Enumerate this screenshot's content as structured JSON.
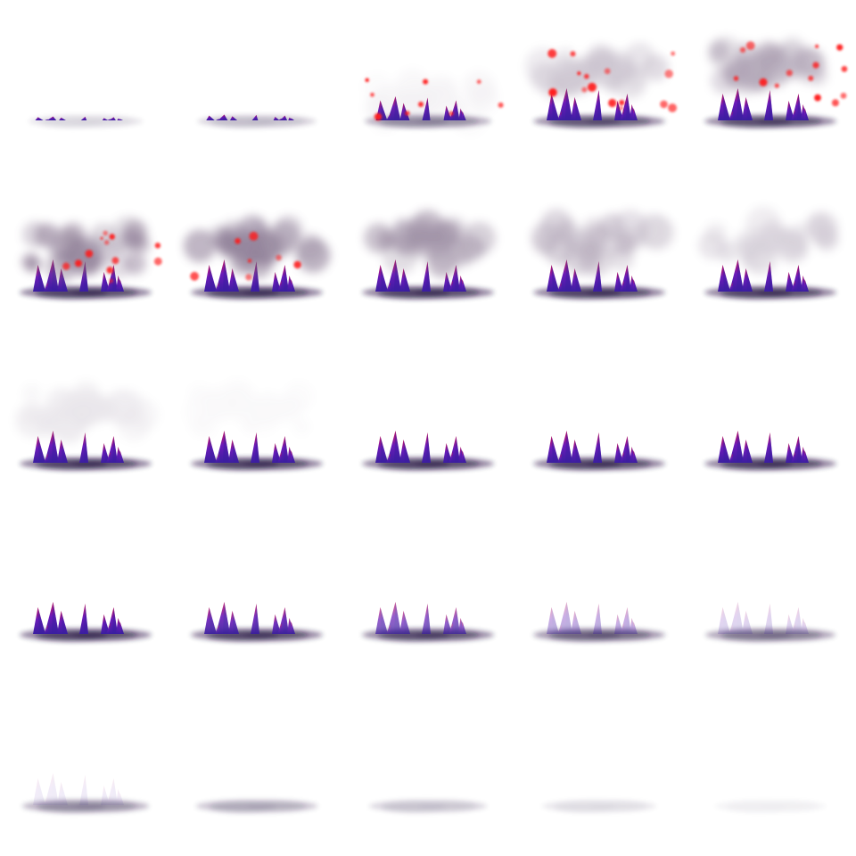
{
  "sprite_sheet": {
    "columns": 5,
    "rows": 5,
    "frame_count": 25,
    "colors": {
      "background": "#ffffff",
      "crystal_base": "#3a1ea0",
      "crystal_tip": "#d0135a",
      "crystal_mid": "#6a1ab8",
      "shadow": "#1e0a3c",
      "smoke": "#6e5878",
      "spark": "#ff1a1a"
    },
    "icons": {
      "crystal": "crystal-spike-icon",
      "shadow": "ground-shadow-icon",
      "smoke": "smoke-cloud-icon",
      "spark": "red-spark-icon"
    },
    "frames": [
      {
        "label": "frame-1",
        "spikes": 0.12,
        "spike_alpha": 1.0,
        "shadow": 0.18,
        "smoke": 0.0,
        "smoke_height": 0.0,
        "sparks": 0.0
      },
      {
        "label": "frame-2",
        "spikes": 0.18,
        "spike_alpha": 1.0,
        "shadow": 0.3,
        "smoke": 0.0,
        "smoke_height": 0.0,
        "sparks": 0.0
      },
      {
        "label": "frame-3",
        "spikes": 0.75,
        "spike_alpha": 1.0,
        "shadow": 0.55,
        "smoke": 0.08,
        "smoke_height": 0.0,
        "sparks": 0.6
      },
      {
        "label": "frame-4",
        "spikes": 1.0,
        "spike_alpha": 1.0,
        "shadow": 0.8,
        "smoke": 0.35,
        "smoke_height": 0.55,
        "sparks": 1.0
      },
      {
        "label": "frame-5",
        "spikes": 1.0,
        "spike_alpha": 1.0,
        "shadow": 0.85,
        "smoke": 0.55,
        "smoke_height": 0.65,
        "sparks": 0.9
      },
      {
        "label": "frame-6",
        "spikes": 1.0,
        "spike_alpha": 1.0,
        "shadow": 0.9,
        "smoke": 0.75,
        "smoke_height": 0.45,
        "sparks": 0.8
      },
      {
        "label": "frame-7",
        "spikes": 1.0,
        "spike_alpha": 1.0,
        "shadow": 0.9,
        "smoke": 0.75,
        "smoke_height": 0.5,
        "sparks": 0.4
      },
      {
        "label": "frame-8",
        "spikes": 1.0,
        "spike_alpha": 1.0,
        "shadow": 0.9,
        "smoke": 0.65,
        "smoke_height": 0.55,
        "sparks": 0.0
      },
      {
        "label": "frame-9",
        "spikes": 1.0,
        "spike_alpha": 1.0,
        "shadow": 0.9,
        "smoke": 0.45,
        "smoke_height": 0.6,
        "sparks": 0.0
      },
      {
        "label": "frame-10",
        "spikes": 1.0,
        "spike_alpha": 1.0,
        "shadow": 0.9,
        "smoke": 0.3,
        "smoke_height": 0.62,
        "sparks": 0.0
      },
      {
        "label": "frame-11",
        "spikes": 1.0,
        "spike_alpha": 1.0,
        "shadow": 0.9,
        "smoke": 0.15,
        "smoke_height": 0.64,
        "sparks": 0.0
      },
      {
        "label": "frame-12",
        "spikes": 1.0,
        "spike_alpha": 1.0,
        "shadow": 0.9,
        "smoke": 0.04,
        "smoke_height": 0.66,
        "sparks": 0.0
      },
      {
        "label": "frame-13",
        "spikes": 1.0,
        "spike_alpha": 1.0,
        "shadow": 0.9,
        "smoke": 0.0,
        "smoke_height": 0.0,
        "sparks": 0.0
      },
      {
        "label": "frame-14",
        "spikes": 1.0,
        "spike_alpha": 1.0,
        "shadow": 0.9,
        "smoke": 0.0,
        "smoke_height": 0.0,
        "sparks": 0.0
      },
      {
        "label": "frame-15",
        "spikes": 1.0,
        "spike_alpha": 1.0,
        "shadow": 0.9,
        "smoke": 0.0,
        "smoke_height": 0.0,
        "sparks": 0.0
      },
      {
        "label": "frame-16",
        "spikes": 1.0,
        "spike_alpha": 1.0,
        "shadow": 0.9,
        "smoke": 0.0,
        "smoke_height": 0.0,
        "sparks": 0.0
      },
      {
        "label": "frame-17",
        "spikes": 1.0,
        "spike_alpha": 0.9,
        "shadow": 0.88,
        "smoke": 0.0,
        "smoke_height": 0.0,
        "sparks": 0.0
      },
      {
        "label": "frame-18",
        "spikes": 1.0,
        "spike_alpha": 0.7,
        "shadow": 0.85,
        "smoke": 0.0,
        "smoke_height": 0.0,
        "sparks": 0.0
      },
      {
        "label": "frame-19",
        "spikes": 1.0,
        "spike_alpha": 0.35,
        "shadow": 0.75,
        "smoke": 0.0,
        "smoke_height": 0.0,
        "sparks": 0.0
      },
      {
        "label": "frame-20",
        "spikes": 1.0,
        "spike_alpha": 0.18,
        "shadow": 0.65,
        "smoke": 0.0,
        "smoke_height": 0.0,
        "sparks": 0.0
      },
      {
        "label": "frame-21",
        "spikes": 1.0,
        "spike_alpha": 0.08,
        "shadow": 0.55,
        "smoke": 0.0,
        "smoke_height": 0.0,
        "sparks": 0.0
      },
      {
        "label": "frame-22",
        "spikes": 1.0,
        "spike_alpha": 0.0,
        "shadow": 0.4,
        "smoke": 0.0,
        "smoke_height": 0.0,
        "sparks": 0.0
      },
      {
        "label": "frame-23",
        "spikes": 1.0,
        "spike_alpha": 0.0,
        "shadow": 0.28,
        "smoke": 0.0,
        "smoke_height": 0.0,
        "sparks": 0.0
      },
      {
        "label": "frame-24",
        "spikes": 1.0,
        "spike_alpha": 0.0,
        "shadow": 0.16,
        "smoke": 0.0,
        "smoke_height": 0.0,
        "sparks": 0.0
      },
      {
        "label": "frame-25",
        "spikes": 1.0,
        "spike_alpha": 0.0,
        "shadow": 0.08,
        "smoke": 0.0,
        "smoke_height": 0.0,
        "sparks": 0.0
      }
    ]
  }
}
